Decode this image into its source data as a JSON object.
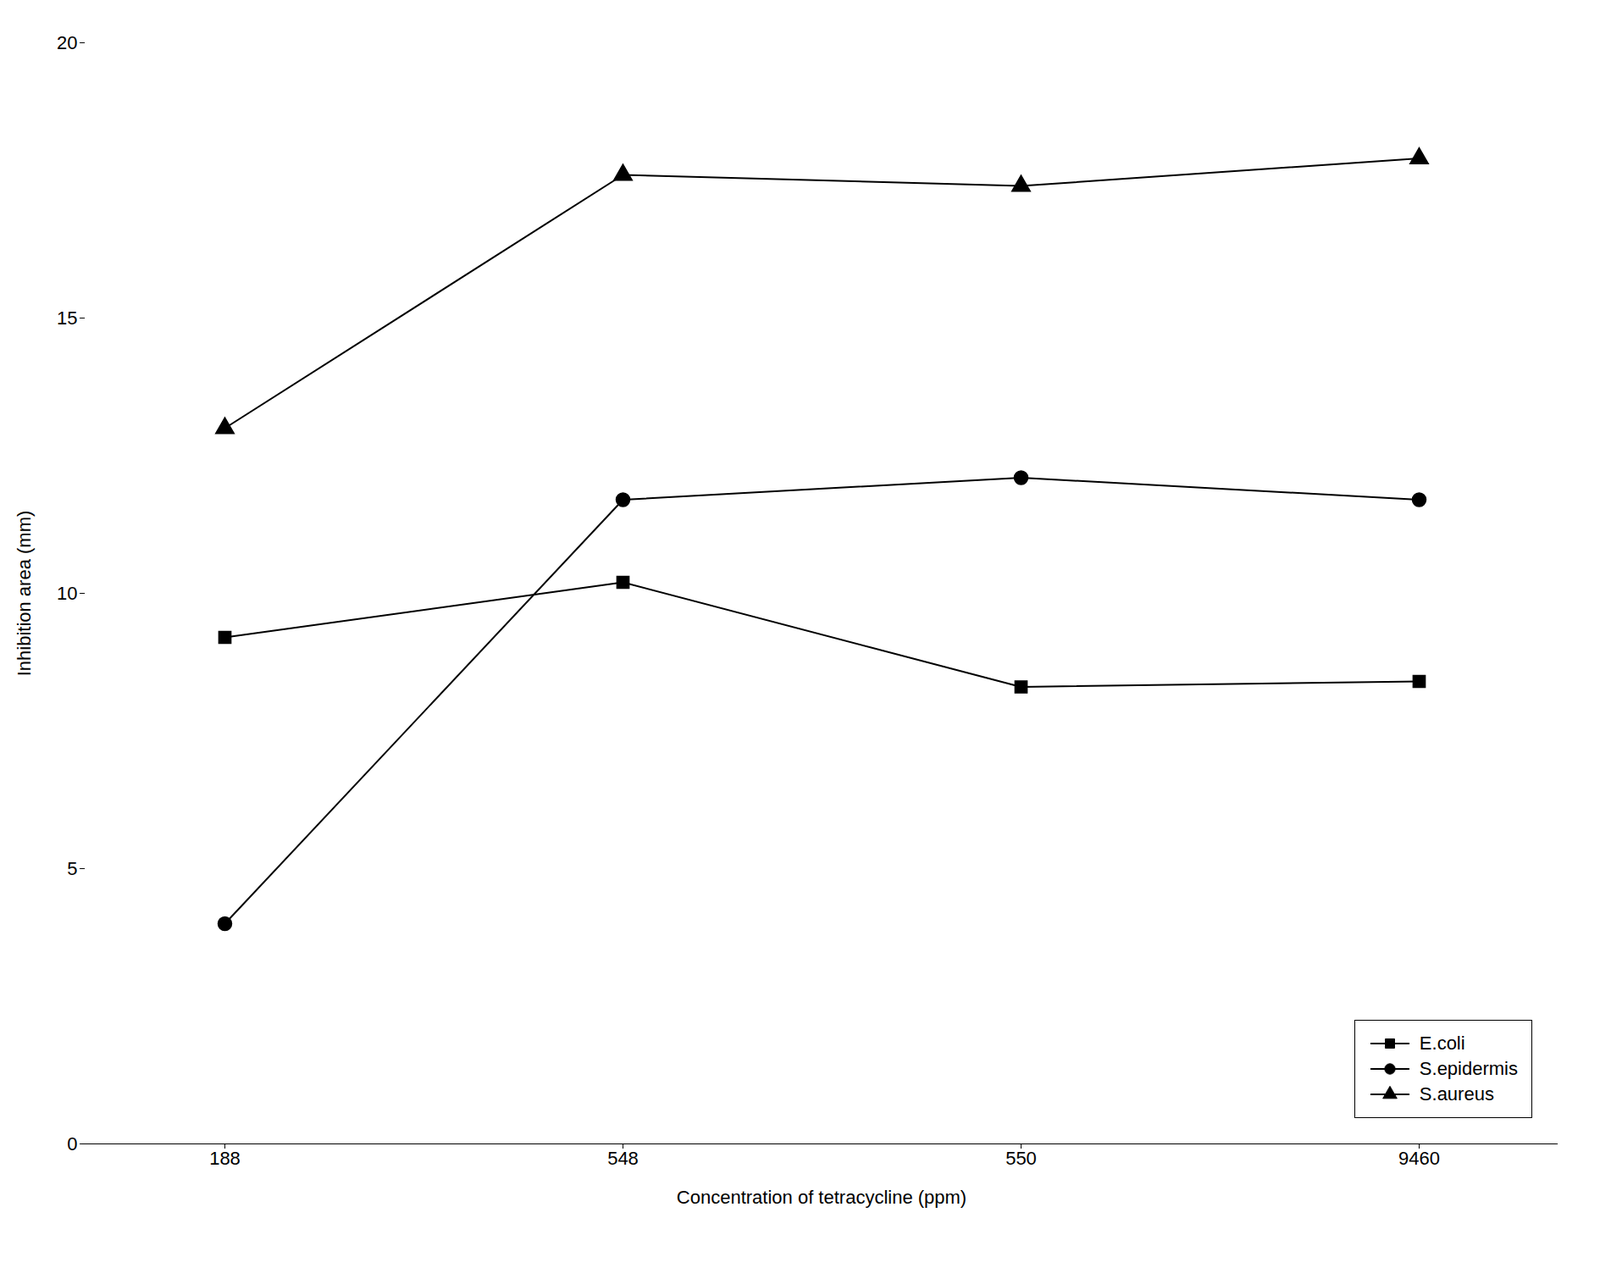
{
  "chart_data": {
    "type": "line",
    "xlabel": "Concentration of tetracycline (ppm)",
    "ylabel": "Inhibition area (mm)",
    "categories": [
      "188",
      "548",
      "550",
      "9460"
    ],
    "series": [
      {
        "name": "E.coli",
        "color": "#000000",
        "marker": "square",
        "values": [
          9.2,
          10.2,
          8.3,
          8.4
        ]
      },
      {
        "name": "S.epidermis",
        "color": "#000000",
        "marker": "circle",
        "values": [
          4.0,
          11.7,
          12.1,
          11.7
        ]
      },
      {
        "name": "S.aureus",
        "color": "#000000",
        "marker": "triangle",
        "values": [
          13.0,
          17.6,
          17.4,
          17.9
        ]
      }
    ],
    "ylim": [
      0,
      20
    ],
    "yticks": [
      0,
      5,
      10,
      15,
      20
    ],
    "grid": false,
    "legend": "lower right"
  }
}
